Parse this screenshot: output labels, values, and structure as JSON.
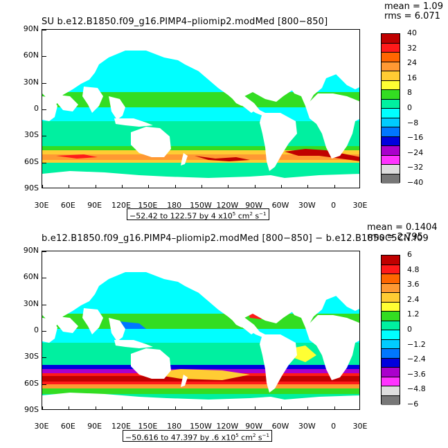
{
  "panels": [
    {
      "title": "SU b.e12.B1850.f09_g16.PIMP4–pliomip2.modMed [800−850]",
      "mean_label": "mean = 1.09",
      "rms_label": "rms = 6.071",
      "range_text": "−52.42 to 122.57 by 4 x10",
      "range_exp": "5",
      "range_units": " cm",
      "range_units_exp": "2",
      "range_units_tail": " s",
      "range_units_tail_exp": "−1",
      "colorbar_labels": [
        "40",
        "32",
        "24",
        "16",
        "8",
        "0",
        "−8",
        "−16",
        "−24",
        "−32",
        "−40"
      ],
      "colors": [
        "#c00000",
        "#ff1a1a",
        "#ff6600",
        "#ff9933",
        "#ffcc33",
        "#ffff33",
        "#33dd22",
        "#00f0a0",
        "#00ffff",
        "#00ccff",
        "#0077ff",
        "#0000dd",
        "#aa00cc",
        "#ff33ff",
        "#dddddd",
        "#777777"
      ]
    },
    {
      "title": "b.e12.B1850.f09_g16.PIMP4–pliomip2.modMed [800−850] − b.e12.B1850C5CN.f09",
      "mean_label": "mean = 0.1404",
      "rms_label": "rms = 2.795",
      "range_text": "−50.616 to 47.397 by .6 x10",
      "range_exp": "5",
      "range_units": " cm",
      "range_units_exp": "2",
      "range_units_tail": " s",
      "range_units_tail_exp": "−1",
      "colorbar_labels": [
        "6",
        "4.8",
        "3.6",
        "2.4",
        "1.2",
        "0",
        "−1.2",
        "−2.4",
        "−3.6",
        "−4.8",
        "−6"
      ],
      "colors": [
        "#c00000",
        "#ff1a1a",
        "#ff6600",
        "#ff9933",
        "#ffcc33",
        "#ffff33",
        "#33dd22",
        "#00f0a0",
        "#00ffff",
        "#00ccff",
        "#0077ff",
        "#0000dd",
        "#aa00cc",
        "#ff33ff",
        "#dddddd",
        "#777777"
      ]
    }
  ],
  "lat_labels": [
    "90N",
    "60N",
    "30N",
    "0",
    "30S",
    "60S",
    "90S"
  ],
  "lon_labels": [
    "30E",
    "60E",
    "90E",
    "120E",
    "150E",
    "180",
    "150W",
    "120W",
    "90W",
    "60W",
    "30W",
    "0",
    "30E"
  ]
}
